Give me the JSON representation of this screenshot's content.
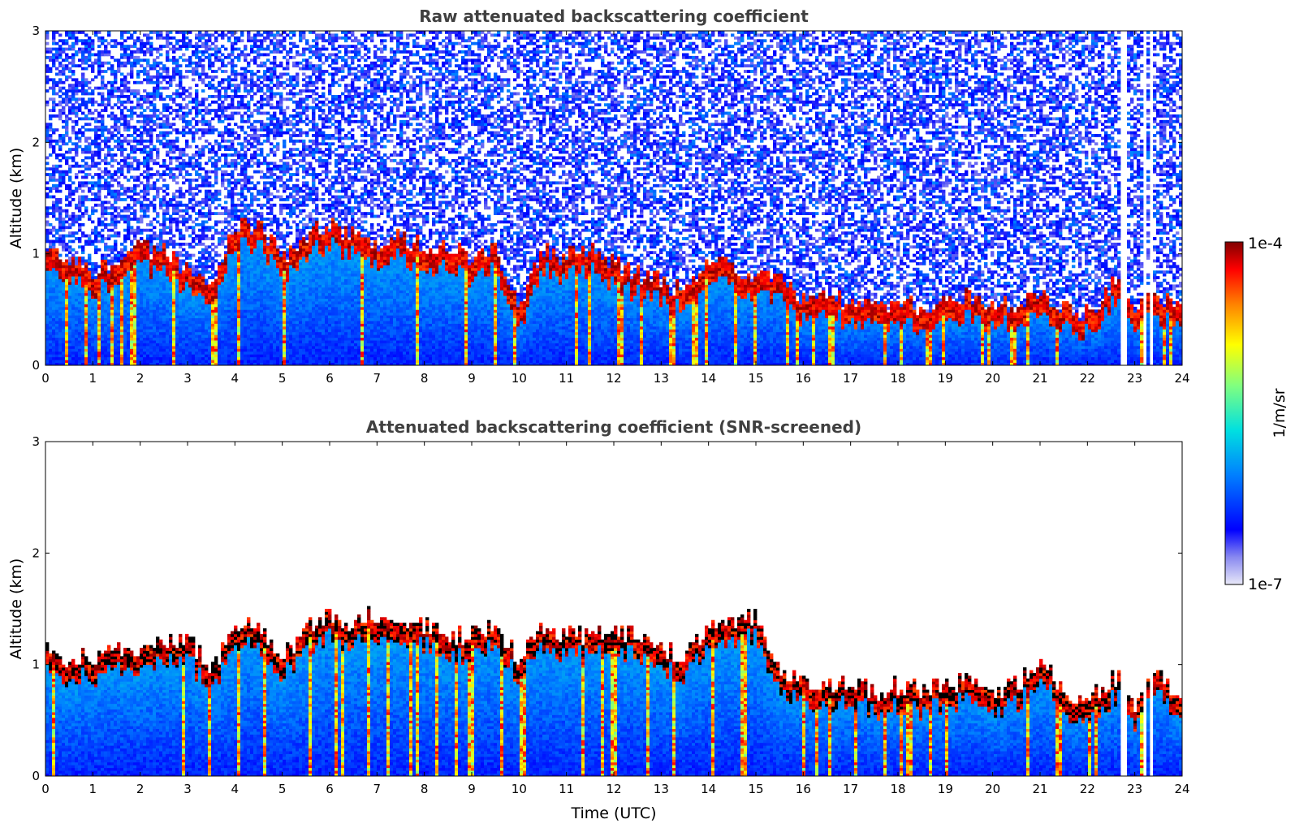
{
  "chart_data": [
    {
      "type": "heatmap",
      "title": "Raw attenuated backscattering coefficient",
      "xlabel": "",
      "ylabel": "Altitude (km)",
      "xlim": [
        0,
        24
      ],
      "ylim": [
        0,
        3
      ],
      "x_ticks": [
        "0",
        "1",
        "2",
        "3",
        "4",
        "5",
        "6",
        "7",
        "8",
        "9",
        "10",
        "11",
        "12",
        "13",
        "14",
        "15",
        "16",
        "17",
        "18",
        "19",
        "20",
        "21",
        "22",
        "23",
        "24"
      ],
      "y_ticks": [
        "0",
        "1",
        "2",
        "3"
      ],
      "screened": false,
      "layer_top_km": [
        [
          0.0,
          0.95
        ],
        [
          0.5,
          0.9
        ],
        [
          1.0,
          0.8
        ],
        [
          1.5,
          0.85
        ],
        [
          2.0,
          1.0
        ],
        [
          2.5,
          0.95
        ],
        [
          3.0,
          0.8
        ],
        [
          3.5,
          0.6
        ],
        [
          4.0,
          1.2
        ],
        [
          4.5,
          1.2
        ],
        [
          5.0,
          0.9
        ],
        [
          5.5,
          1.1
        ],
        [
          6.0,
          1.2
        ],
        [
          6.5,
          1.1
        ],
        [
          7.0,
          1.0
        ],
        [
          7.5,
          1.1
        ],
        [
          8.0,
          1.0
        ],
        [
          8.5,
          1.0
        ],
        [
          9.0,
          0.9
        ],
        [
          9.5,
          1.0
        ],
        [
          10.0,
          0.45
        ],
        [
          10.5,
          1.0
        ],
        [
          11.0,
          0.9
        ],
        [
          11.5,
          1.0
        ],
        [
          12.0,
          0.85
        ],
        [
          12.5,
          0.75
        ],
        [
          13.0,
          0.7
        ],
        [
          13.5,
          0.6
        ],
        [
          14.0,
          0.9
        ],
        [
          14.5,
          0.8
        ],
        [
          15.0,
          0.75
        ],
        [
          15.5,
          0.7
        ],
        [
          16.0,
          0.55
        ],
        [
          16.5,
          0.55
        ],
        [
          17.0,
          0.5
        ],
        [
          17.5,
          0.45
        ],
        [
          18.0,
          0.5
        ],
        [
          18.5,
          0.45
        ],
        [
          19.0,
          0.5
        ],
        [
          19.5,
          0.55
        ],
        [
          20.0,
          0.45
        ],
        [
          20.5,
          0.5
        ],
        [
          21.0,
          0.55
        ],
        [
          21.5,
          0.5
        ],
        [
          22.0,
          0.4
        ],
        [
          22.5,
          0.65
        ],
        [
          22.7,
          0.8
        ],
        [
          23.0,
          0.5
        ],
        [
          23.5,
          0.5
        ],
        [
          24.0,
          0.55
        ]
      ],
      "gaps_hour": [
        [
          22.68,
          22.85
        ],
        [
          23.15,
          23.25
        ],
        [
          23.32,
          23.38
        ]
      ]
    },
    {
      "type": "heatmap",
      "title": "Attenuated backscattering coefficient (SNR-screened)",
      "xlabel": "Time (UTC)",
      "ylabel": "Altitude (km)",
      "xlim": [
        0,
        24
      ],
      "ylim": [
        0,
        3
      ],
      "x_ticks": [
        "0",
        "1",
        "2",
        "3",
        "4",
        "5",
        "6",
        "7",
        "8",
        "9",
        "10",
        "11",
        "12",
        "13",
        "14",
        "15",
        "16",
        "17",
        "18",
        "19",
        "20",
        "21",
        "22",
        "23",
        "24"
      ],
      "y_ticks": [
        "0",
        "1",
        "2",
        "3"
      ],
      "screened": true,
      "layer_top_km": [
        [
          0.0,
          1.05
        ],
        [
          0.5,
          1.0
        ],
        [
          1.0,
          1.0
        ],
        [
          1.5,
          1.1
        ],
        [
          2.0,
          1.1
        ],
        [
          2.5,
          1.1
        ],
        [
          3.0,
          1.2
        ],
        [
          3.5,
          0.85
        ],
        [
          4.0,
          1.3
        ],
        [
          4.5,
          1.3
        ],
        [
          5.0,
          1.0
        ],
        [
          5.5,
          1.25
        ],
        [
          6.0,
          1.4
        ],
        [
          6.5,
          1.3
        ],
        [
          7.0,
          1.4
        ],
        [
          7.5,
          1.3
        ],
        [
          8.0,
          1.3
        ],
        [
          8.5,
          1.2
        ],
        [
          9.0,
          1.2
        ],
        [
          9.5,
          1.3
        ],
        [
          10.0,
          1.0
        ],
        [
          10.5,
          1.3
        ],
        [
          11.0,
          1.2
        ],
        [
          11.5,
          1.2
        ],
        [
          12.0,
          1.25
        ],
        [
          12.5,
          1.2
        ],
        [
          13.0,
          1.1
        ],
        [
          13.5,
          1.0
        ],
        [
          14.0,
          1.3
        ],
        [
          14.5,
          1.3
        ],
        [
          15.0,
          1.4
        ],
        [
          15.5,
          0.85
        ],
        [
          16.0,
          0.8
        ],
        [
          16.5,
          0.75
        ],
        [
          17.0,
          0.8
        ],
        [
          17.5,
          0.7
        ],
        [
          18.0,
          0.75
        ],
        [
          18.5,
          0.7
        ],
        [
          19.0,
          0.75
        ],
        [
          19.5,
          0.8
        ],
        [
          20.0,
          0.7
        ],
        [
          20.5,
          0.75
        ],
        [
          21.0,
          1.0
        ],
        [
          21.5,
          0.7
        ],
        [
          22.0,
          0.65
        ],
        [
          22.5,
          0.8
        ],
        [
          22.7,
          0.85
        ],
        [
          23.0,
          0.6
        ],
        [
          23.5,
          0.9
        ],
        [
          24.0,
          0.6
        ]
      ],
      "gaps_hour": [
        [
          22.68,
          22.85
        ],
        [
          23.15,
          23.25
        ],
        [
          23.32,
          23.38
        ]
      ]
    }
  ],
  "colorbar": {
    "label": "1/m/sr",
    "max_label": "1e-4",
    "min_label": "1e-7",
    "scale": "log",
    "range": [
      1e-07,
      0.0001
    ],
    "colormap": "jet",
    "stops": [
      "#e8e8f8",
      "#8888f0",
      "#0000ff",
      "#0080ff",
      "#00e0e0",
      "#80ff80",
      "#ffff00",
      "#ff8000",
      "#ff0000",
      "#800000"
    ]
  }
}
